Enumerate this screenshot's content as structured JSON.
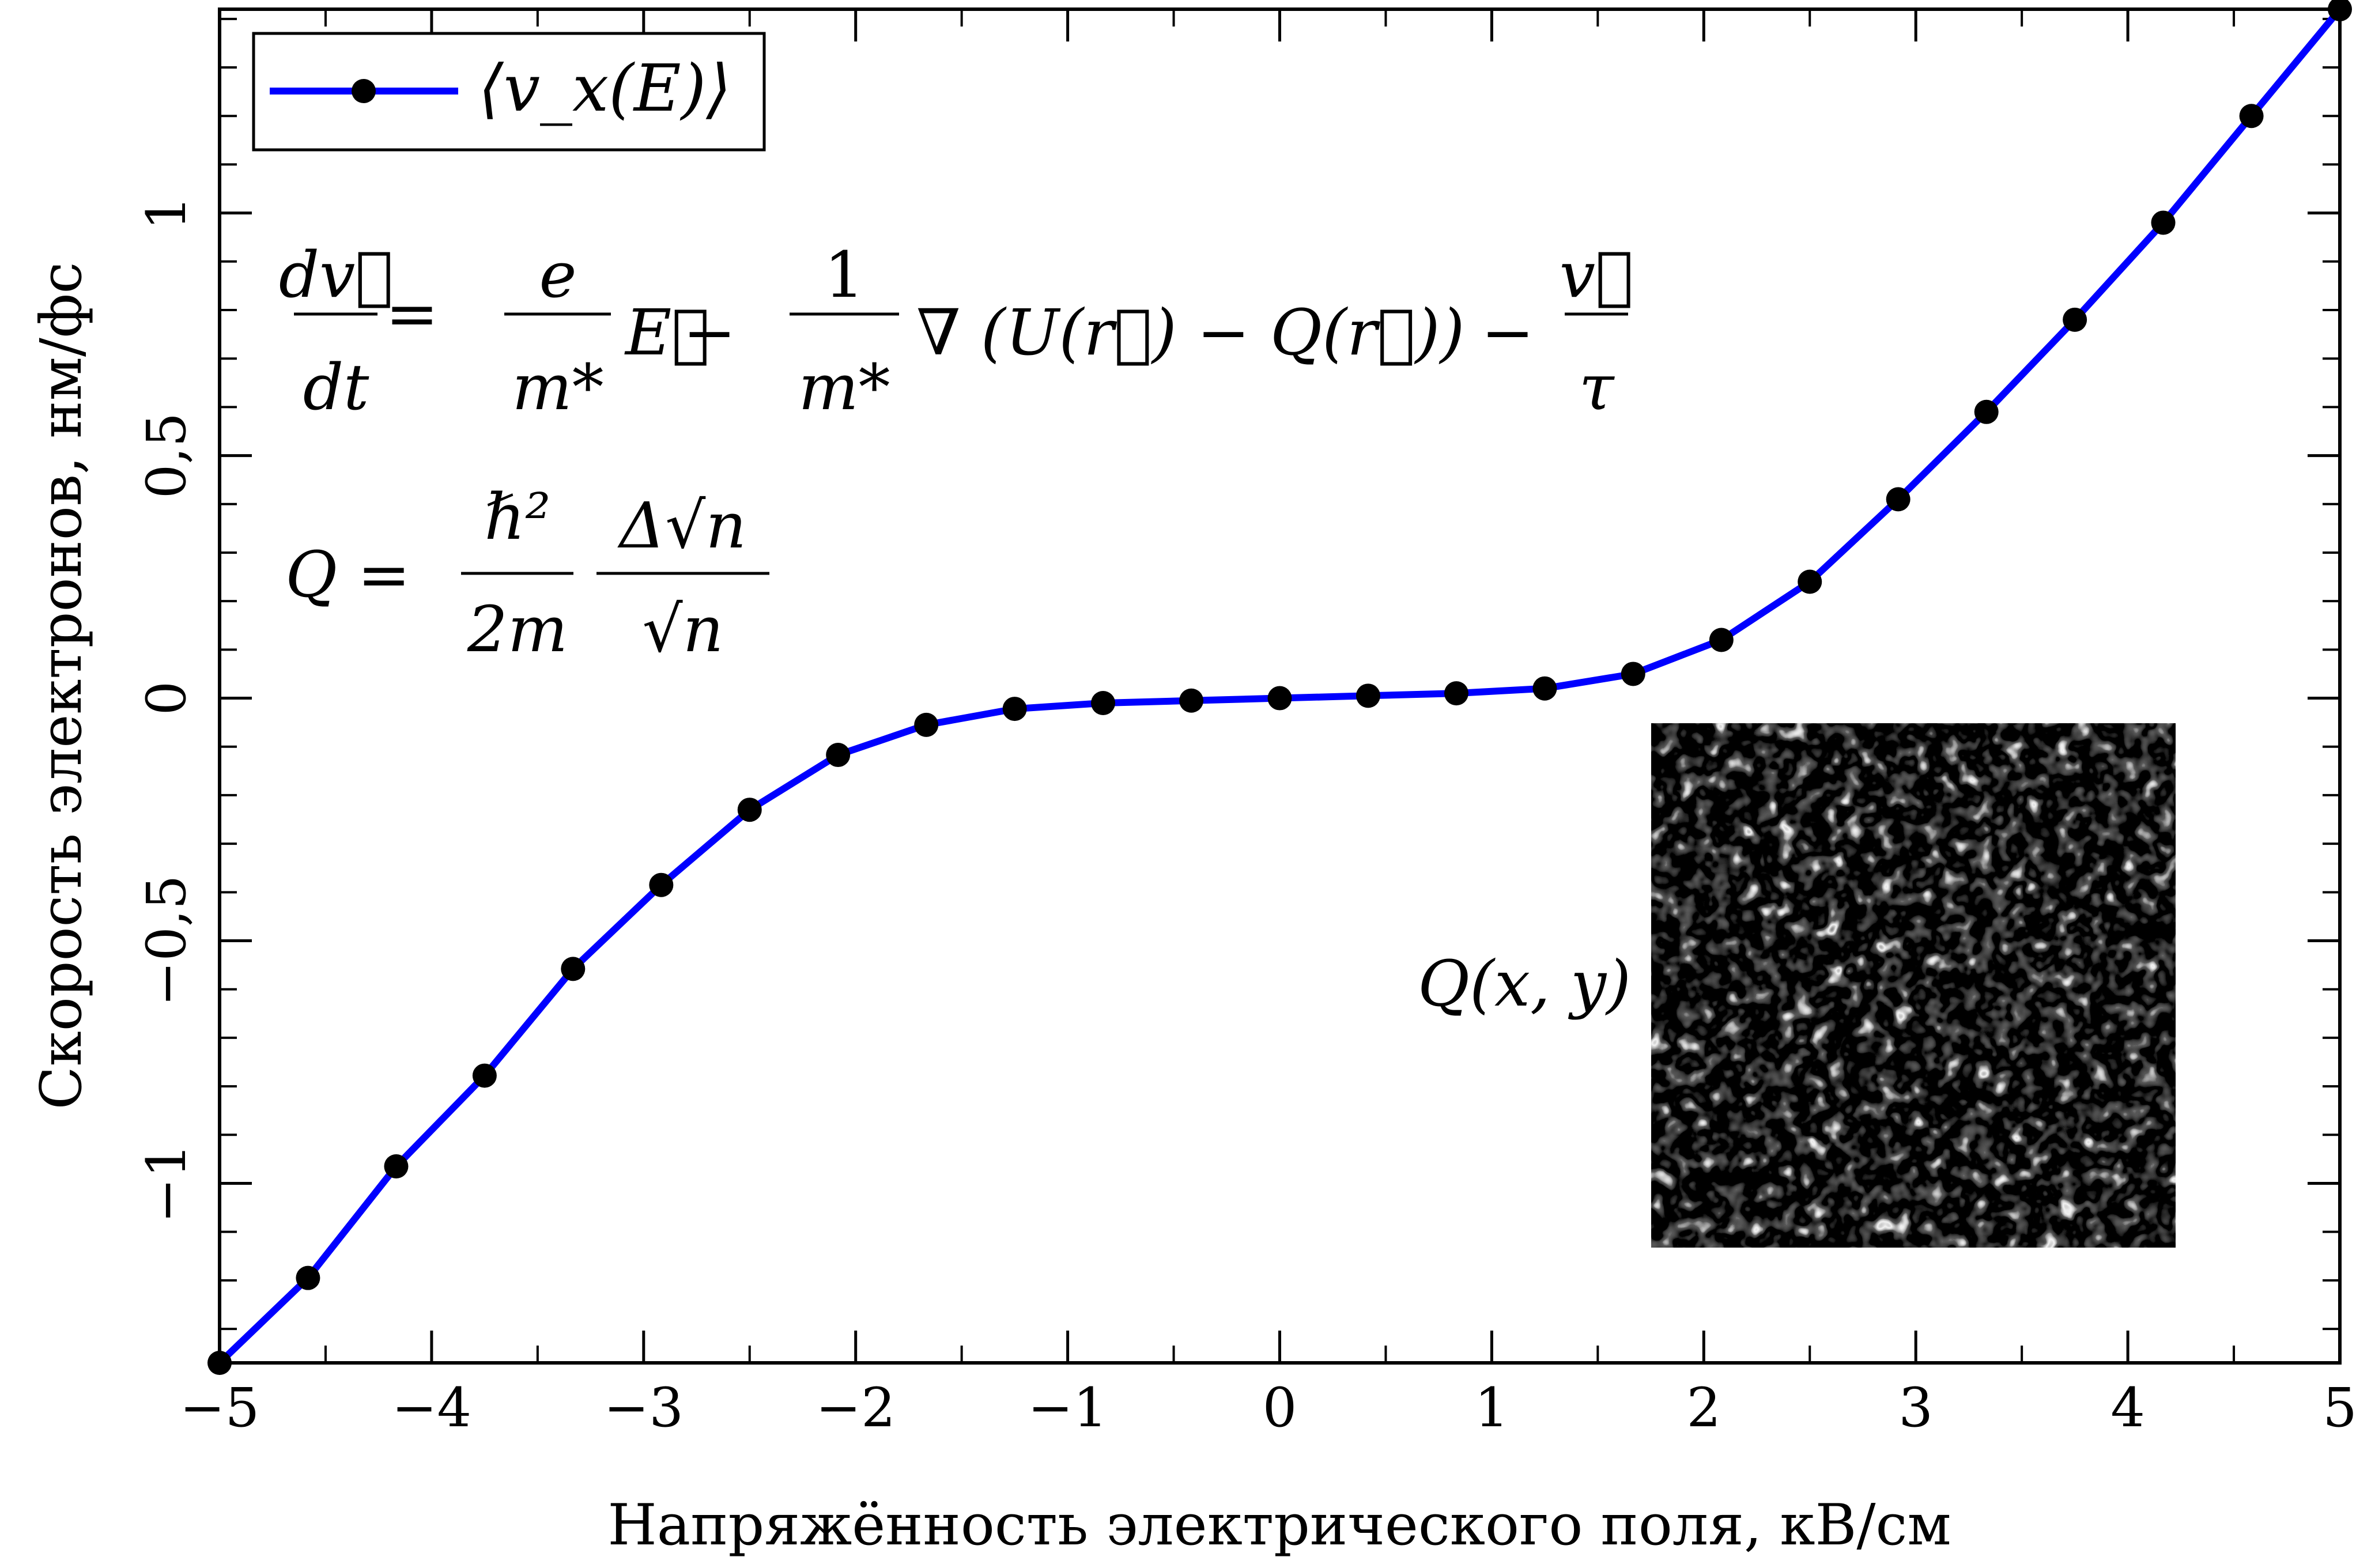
{
  "chart_data": {
    "type": "line",
    "xlabel": "Напряжённость электрического поля, кВ/см",
    "ylabel": "Скорость электронов, нм/фс",
    "xlim": [
      -5,
      5
    ],
    "ylim": [
      -1.37,
      1.42
    ],
    "x_ticks": [
      -5,
      -4,
      -3,
      -2,
      -1,
      0,
      1,
      2,
      3,
      4,
      5
    ],
    "x_tick_labels": [
      "−5",
      "−4",
      "−3",
      "−2",
      "−1",
      "0",
      "1",
      "2",
      "3",
      "4",
      "5"
    ],
    "y_ticks": [
      -1,
      -0.5,
      0,
      0.5,
      1
    ],
    "y_tick_labels": [
      "−1",
      "−0,5",
      "0",
      "0,5",
      "1"
    ],
    "grid": false,
    "legend_position": "top-left",
    "series": [
      {
        "name": "⟨v_x(E)⟩",
        "color": "#0000ff",
        "marker_color": "#000000",
        "x": [
          -5.0,
          -4.583,
          -4.167,
          -3.75,
          -3.333,
          -2.917,
          -2.5,
          -2.083,
          -1.667,
          -1.25,
          -0.833,
          -0.417,
          0.0,
          0.417,
          0.833,
          1.25,
          1.667,
          2.083,
          2.5,
          2.917,
          3.333,
          3.75,
          4.167,
          4.583,
          5.0
        ],
        "y": [
          -1.37,
          -1.195,
          -0.965,
          -0.778,
          -0.558,
          -0.385,
          -0.23,
          -0.117,
          -0.055,
          -0.022,
          -0.01,
          -0.005,
          0.0,
          0.005,
          0.01,
          0.02,
          0.05,
          0.12,
          0.24,
          0.41,
          0.59,
          0.78,
          0.98,
          1.2,
          1.42
        ]
      }
    ],
    "annotations": {
      "equation_motion": {
        "lhs_num": "dv⃗",
        "lhs_den": "dt",
        "equals": "=",
        "term1_num": "e",
        "term1_den": "m*",
        "term1_vec": "E⃗",
        "minus1": "−",
        "term2_num": "1",
        "term2_den": "m*",
        "term2_body": "∇ (U(r⃗) − Q(r⃗))",
        "minus2": "−",
        "term3_num": "v⃗",
        "term3_den": "τ"
      },
      "equation_q": {
        "lhs": "Q =",
        "f1_num": "ℏ²",
        "f1_den": "2m",
        "f2_num": "Δ√n",
        "f2_den": "√n"
      },
      "inset_label": "Q(x, y)"
    }
  }
}
